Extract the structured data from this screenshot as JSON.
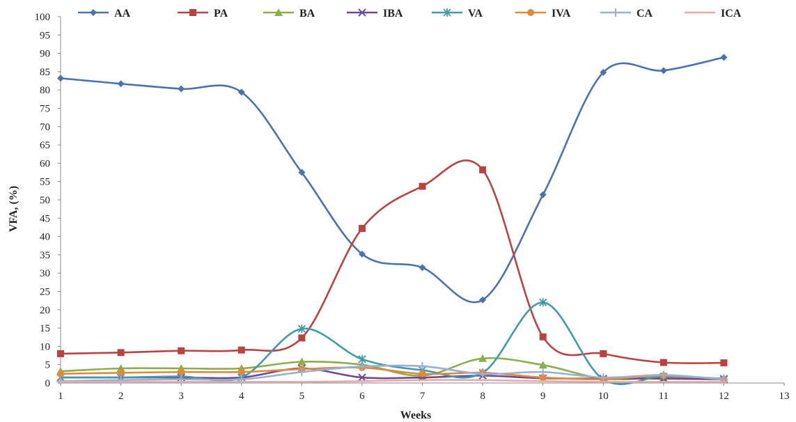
{
  "chart_data": {
    "type": "line",
    "title": "",
    "xlabel": "Weeks",
    "ylabel": "VFA, (%)",
    "xlim": [
      1,
      13
    ],
    "ylim": [
      0,
      100
    ],
    "x_ticks": [
      1,
      2,
      3,
      4,
      5,
      6,
      7,
      8,
      9,
      10,
      11,
      12,
      13
    ],
    "y_ticks": [
      0,
      5,
      10,
      15,
      20,
      25,
      30,
      35,
      40,
      45,
      50,
      55,
      60,
      65,
      70,
      75,
      80,
      85,
      90,
      95,
      100
    ],
    "x": [
      1,
      2,
      3,
      4,
      5,
      6,
      7,
      8,
      9,
      10,
      11,
      12
    ],
    "legend_position": "top",
    "series": [
      {
        "name": "AA",
        "color": "#4a72b0",
        "marker": "diamond",
        "values": [
          83.2,
          81.7,
          80.3,
          79.4,
          57.5,
          35.2,
          31.5,
          22.7,
          51.4,
          84.8,
          85.3,
          88.9
        ]
      },
      {
        "name": "PA",
        "color": "#b84340",
        "marker": "square",
        "values": [
          8.0,
          8.3,
          8.8,
          9.0,
          12.3,
          42.2,
          53.7,
          58.2,
          12.6,
          8.0,
          5.6,
          5.5
        ]
      },
      {
        "name": "BA",
        "color": "#8aae4a",
        "marker": "triangle",
        "values": [
          3.2,
          4.0,
          4.0,
          4.0,
          5.8,
          5.0,
          2.0,
          6.7,
          4.9,
          1.2,
          1.5,
          1.2
        ]
      },
      {
        "name": "IBA",
        "color": "#6c4a92",
        "marker": "x",
        "values": [
          1.5,
          1.5,
          1.5,
          1.5,
          4.0,
          1.5,
          1.5,
          2.0,
          1.3,
          1.2,
          1.2,
          1.0
        ]
      },
      {
        "name": "VA",
        "color": "#3f9aab",
        "marker": "star",
        "values": [
          1.5,
          1.5,
          1.8,
          1.5,
          14.8,
          6.5,
          3.5,
          2.8,
          22.0,
          1.0,
          1.8,
          1.2
        ]
      },
      {
        "name": "IVA",
        "color": "#e0893d",
        "marker": "circle",
        "values": [
          2.5,
          2.8,
          3.0,
          3.0,
          3.8,
          4.2,
          2.5,
          2.8,
          1.5,
          1.0,
          2.0,
          1.0
        ]
      },
      {
        "name": "CA",
        "color": "#9aaed6",
        "marker": "plus",
        "values": [
          0.5,
          0.8,
          1.0,
          1.0,
          3.0,
          4.5,
          4.6,
          2.5,
          3.0,
          1.5,
          2.2,
          1.0
        ]
      },
      {
        "name": "ICA",
        "color": "#e8a9a8",
        "marker": "dash",
        "values": [
          0.3,
          0.3,
          0.3,
          0.3,
          0.3,
          0.5,
          0.8,
          0.8,
          0.5,
          0.3,
          0.3,
          0.3
        ]
      }
    ]
  }
}
